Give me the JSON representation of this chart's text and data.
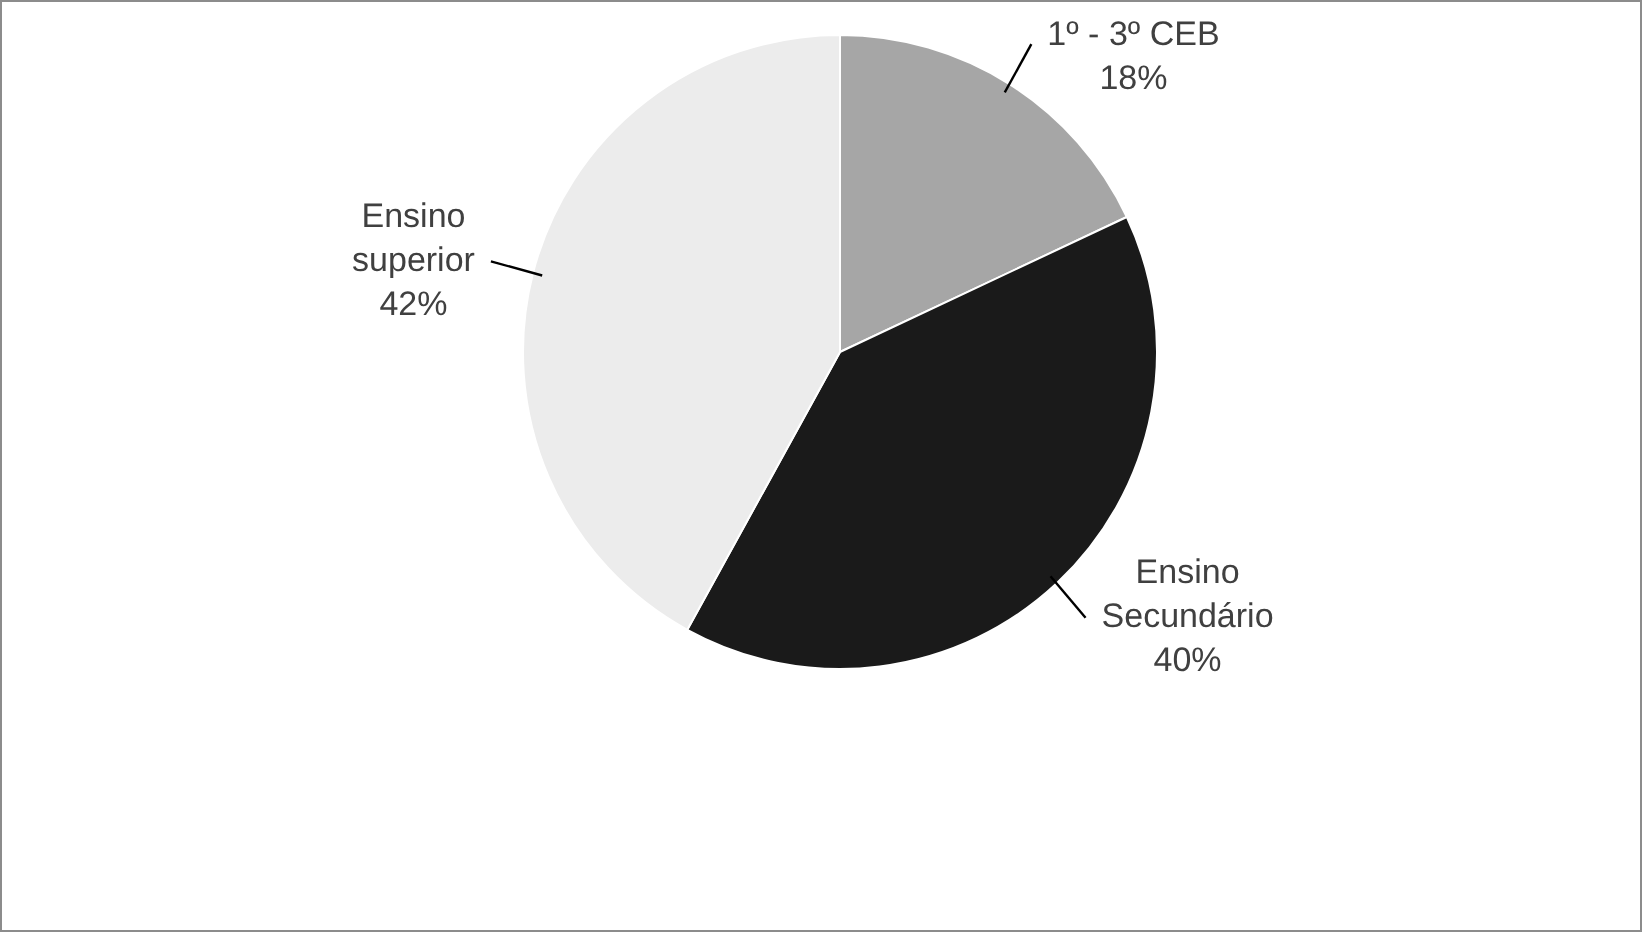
{
  "chart_data": {
    "type": "pie",
    "categories": [
      "1º - 3º CEB",
      "Ensino Secundário",
      "Ensino superior"
    ],
    "values": [
      18,
      40,
      42
    ],
    "colors": [
      "#a6a6a6",
      "#1a1a1a",
      "#ececec"
    ],
    "value_labels": [
      "18%",
      "40%",
      "42%"
    ],
    "legend": false
  }
}
